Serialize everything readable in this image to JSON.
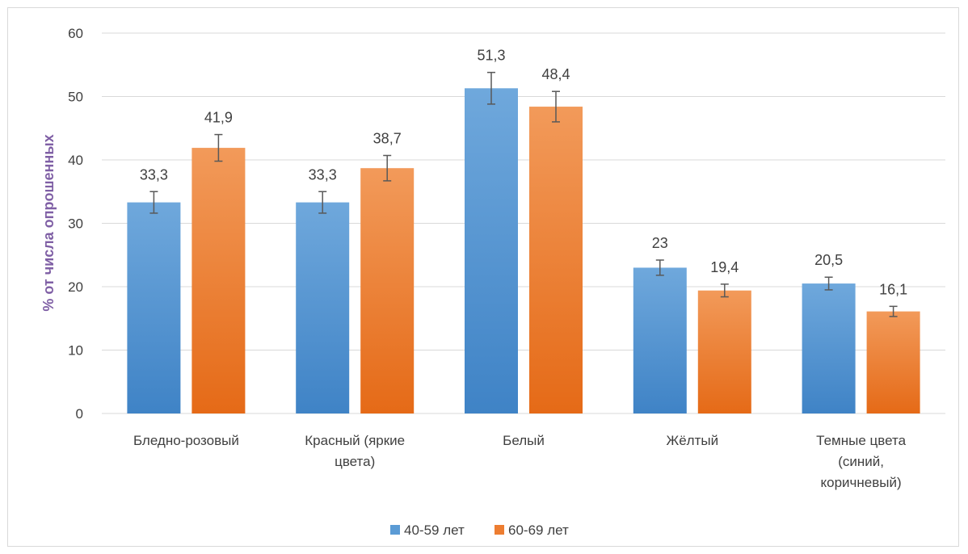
{
  "chart_data": {
    "type": "bar",
    "ylabel": "% от числа опрошенных",
    "ylim": [
      0,
      60
    ],
    "yticks": [
      0,
      10,
      20,
      30,
      40,
      50,
      60
    ],
    "grid": true,
    "legend_position": "bottom",
    "categories": [
      [
        "Бледно-розовый"
      ],
      [
        "Красный (яркие",
        "цвета)"
      ],
      [
        "Белый"
      ],
      [
        "Жёлтый"
      ],
      [
        "Темные цвета",
        "(синий,",
        "коричневый)"
      ]
    ],
    "series": [
      {
        "name": "40-59 лет",
        "color": "#5b9bd5",
        "values": [
          33.3,
          33.3,
          51.3,
          23,
          20.5
        ],
        "labels": [
          "33,3",
          "33,3",
          "51,3",
          "23",
          "20,5"
        ],
        "error": [
          1.7,
          1.7,
          2.5,
          1.2,
          1.0
        ]
      },
      {
        "name": "60-69 лет",
        "color": "#ed7d31",
        "values": [
          41.9,
          38.7,
          48.4,
          19.4,
          16.1
        ],
        "labels": [
          "41,9",
          "38,7",
          "48,4",
          "19,4",
          "16,1"
        ],
        "error": [
          2.1,
          2.0,
          2.4,
          1.0,
          0.8
        ]
      }
    ],
    "colors": {
      "ylabel": "#7f5fa5",
      "grid": "#d9d9d9",
      "errorbar": "#595959"
    }
  }
}
